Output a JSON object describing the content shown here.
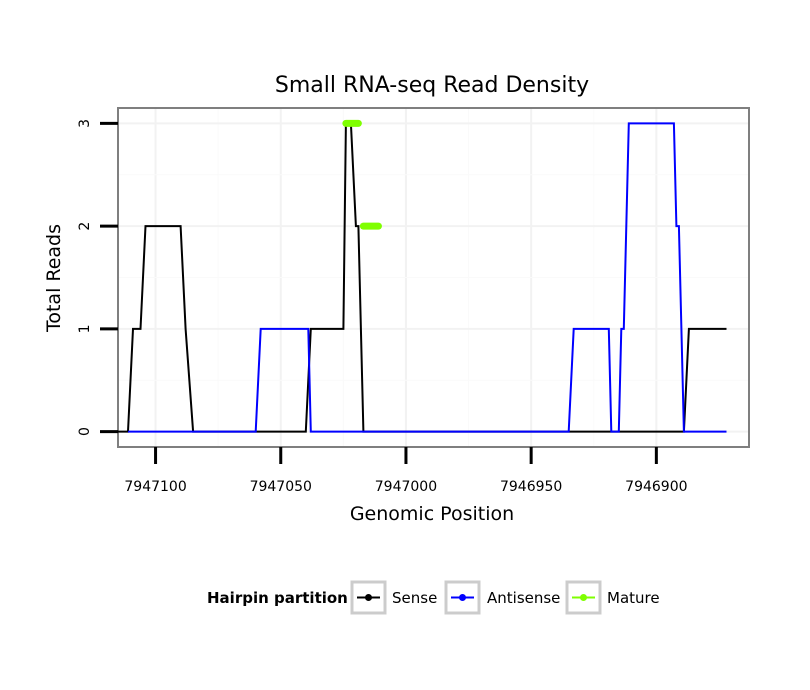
{
  "chart_data": {
    "type": "line",
    "title": "Small RNA-seq Read Density",
    "xlabel": "Genomic Position",
    "ylabel": "Total Reads",
    "xlim": [
      7947115,
      7946863
    ],
    "ylim": [
      -0.15,
      3.15
    ],
    "x_ticks": [
      7947100,
      7947050,
      7947000,
      7946950,
      7946900
    ],
    "x_tick_labels": [
      "7947100",
      "7947050",
      "7947000",
      "7946950",
      "7946900"
    ],
    "y_ticks": [
      0,
      1,
      2,
      3
    ],
    "y_tick_labels": [
      "0",
      "1",
      "2",
      "3"
    ],
    "legend": {
      "title": "Hairpin partition",
      "position": "bottom",
      "entries": [
        {
          "name": "Sense",
          "color": "#000000"
        },
        {
          "name": "Antisense",
          "color": "#0000ff"
        },
        {
          "name": "Mature",
          "color": "#7fff00"
        }
      ]
    },
    "series": [
      {
        "name": "Sense",
        "color": "#000000",
        "x": [
          7947118,
          7947111,
          7947109,
          7947106,
          7947104,
          7947090,
          7947088,
          7947085,
          7947040,
          7947038,
          7947025,
          7947024,
          7947022,
          7947020,
          7947019,
          7947017,
          7947016,
          7946889,
          7946887,
          7946872
        ],
        "y": [
          0,
          0,
          1,
          1,
          2,
          2,
          1,
          0,
          0,
          1,
          1,
          3,
          3,
          2,
          2,
          0,
          0,
          0,
          1,
          1
        ]
      },
      {
        "name": "Antisense",
        "color": "#0000ff",
        "x": [
          7947111,
          7947060,
          7947058,
          7947039,
          7947038,
          7946935,
          7946933,
          7946919,
          7946918,
          7946915,
          7946914,
          7946913,
          7946911,
          7946893,
          7946892,
          7946891,
          7946889,
          7946872
        ],
        "y": [
          0,
          0,
          1,
          1,
          0,
          0,
          1,
          1,
          0,
          0,
          1,
          1,
          3,
          3,
          2,
          2,
          0,
          0
        ]
      },
      {
        "name": "Mature",
        "color": "#7fff00",
        "segments": [
          {
            "x": [
              7947024,
              7947019
            ],
            "y": [
              3,
              3
            ]
          },
          {
            "x": [
              7947017,
              7947011
            ],
            "y": [
              2,
              2
            ]
          }
        ]
      }
    ]
  }
}
